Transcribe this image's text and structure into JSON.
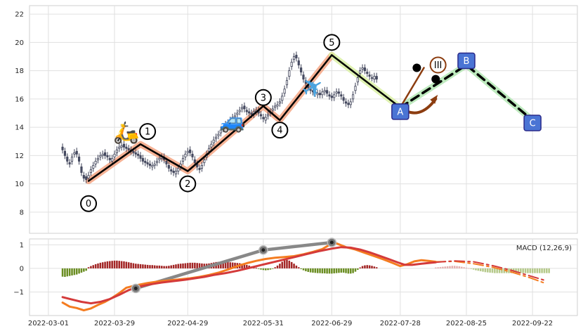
{
  "chart_data": {
    "type": "candlestick",
    "panels": [
      {
        "name": "price",
        "ylim": [
          6.5,
          22.6
        ],
        "y_ticks": [
          "8",
          "10",
          "12",
          "14",
          "16",
          "18",
          "20",
          "22"
        ],
        "y_tick_values": [
          8,
          10,
          12,
          14,
          16,
          18,
          20,
          22
        ],
        "grid": true
      },
      {
        "name": "macd",
        "title": "MACD (12,26,9)",
        "ylim": [
          -2.0,
          1.25
        ],
        "y_ticks": [
          "−1",
          "0",
          "1"
        ],
        "y_tick_values": [
          -1,
          0,
          1
        ],
        "grid": true
      }
    ],
    "x_ticks": [
      "2022-03-01",
      "2022-03-29",
      "2022-04-29",
      "2022-05-31",
      "2022-06-29",
      "2022-07-28",
      "2022-08-25",
      "2022-09-22"
    ],
    "x_tick_values": [
      0,
      28,
      59,
      91,
      120,
      149,
      177,
      205
    ],
    "xlim": [
      -8,
      224
    ],
    "candles": {
      "x_start": 6,
      "x_step": 1,
      "close": [
        12.4,
        12.0,
        11.6,
        11.4,
        11.9,
        12.2,
        12.1,
        11.6,
        10.8,
        10.4,
        10.3,
        10.6,
        11.0,
        11.3,
        11.6,
        11.8,
        12.0,
        12.1,
        12.0,
        11.9,
        11.7,
        11.8,
        12.1,
        12.4,
        12.6,
        12.7,
        12.6,
        12.5,
        12.4,
        12.3,
        12.2,
        12.1,
        12.0,
        11.8,
        11.6,
        11.5,
        11.4,
        11.3,
        11.3,
        11.4,
        11.6,
        11.8,
        11.9,
        11.7,
        11.4,
        11.1,
        10.9,
        10.8,
        10.9,
        11.1,
        11.4,
        11.8,
        12.1,
        12.3,
        12.2,
        11.9,
        11.5,
        11.2,
        11.0,
        11.3,
        11.7,
        12.1,
        12.5,
        12.8,
        13.1,
        13.3,
        13.5,
        13.8,
        14.0,
        14.2,
        14.3,
        14.5,
        14.7,
        14.8,
        15.0,
        15.2,
        15.4,
        15.3,
        15.1,
        15.0,
        14.9,
        15.1,
        15.2,
        15.0,
        14.8,
        14.6,
        14.7,
        14.9,
        15.1,
        15.3,
        15.5,
        15.6,
        15.8,
        16.2,
        16.7,
        17.3,
        18.0,
        18.6,
        19.0,
        18.9,
        18.4,
        17.9,
        17.4,
        17.1,
        16.8,
        16.6,
        16.5,
        16.4,
        16.4,
        16.3,
        16.5,
        16.6,
        16.4,
        16.2,
        16.1,
        16.3,
        16.5,
        16.4,
        16.2,
        15.9,
        15.7,
        15.6,
        15.8,
        16.3,
        16.9,
        17.5,
        18.0,
        18.2,
        18.0,
        17.8,
        17.6,
        17.5,
        17.6,
        17.4
      ],
      "open": [
        12.6,
        12.3,
        11.9,
        11.5,
        11.6,
        12.1,
        12.3,
        11.9,
        11.2,
        10.6,
        10.5,
        10.4,
        10.8,
        11.1,
        11.4,
        11.7,
        11.9,
        12.0,
        12.2,
        12.0,
        11.8,
        11.6,
        11.9,
        12.2,
        12.5,
        12.6,
        12.8,
        12.6,
        12.5,
        12.4,
        12.3,
        12.2,
        12.1,
        12.0,
        11.8,
        11.6,
        11.5,
        11.4,
        11.2,
        11.3,
        11.5,
        11.7,
        11.8,
        11.9,
        11.6,
        11.3,
        11.0,
        10.9,
        10.7,
        10.9,
        11.2,
        11.6,
        11.9,
        12.2,
        12.4,
        12.1,
        11.7,
        11.4,
        11.1,
        11.1,
        11.5,
        11.9,
        12.3,
        12.6,
        12.9,
        13.2,
        13.4,
        13.6,
        13.9,
        14.1,
        14.2,
        14.4,
        14.6,
        14.7,
        14.9,
        15.1,
        15.3,
        15.5,
        15.2,
        15.1,
        15.0,
        14.9,
        15.1,
        15.2,
        14.9,
        14.7,
        14.5,
        14.8,
        15.0,
        15.2,
        15.4,
        15.5,
        15.7,
        15.9,
        16.4,
        17.0,
        17.6,
        18.3,
        18.8,
        19.1,
        18.7,
        18.2,
        17.7,
        17.3,
        17.0,
        16.7,
        16.6,
        16.5,
        16.3,
        16.4,
        16.3,
        16.5,
        16.6,
        16.3,
        16.2,
        16.1,
        16.4,
        16.5,
        16.3,
        16.1,
        15.8,
        15.7,
        15.6,
        16.0,
        16.6,
        17.2,
        17.8,
        18.1,
        18.2,
        17.9,
        17.7,
        17.5,
        17.4,
        17.6
      ],
      "up_color": "#ffffff",
      "down_color": "#4a5068",
      "edge_color": "#3b3f55"
    },
    "wave_lines": [
      {
        "points": [
          [
            17,
            10.2
          ],
          [
            39,
            12.8
          ],
          [
            59,
            10.9
          ],
          [
            91,
            15.5
          ],
          [
            98,
            14.5
          ],
          [
            120,
            19.1
          ]
        ],
        "color": "#000000",
        "halo": "#f4a582"
      },
      {
        "points": [
          [
            120,
            19.1
          ],
          [
            149,
            15.4
          ]
        ],
        "color": "#000000",
        "halo": "#d9f0a3"
      },
      {
        "points": [
          [
            149,
            15.4
          ],
          [
            177,
            18.4
          ],
          [
            205,
            14.5
          ]
        ],
        "color": "#000000",
        "halo": "#b3e6b3",
        "dashed": true
      },
      {
        "points": [
          [
            149,
            15.4
          ],
          [
            159,
            18.2
          ]
        ],
        "color": "#8c3d10"
      },
      {
        "points": [
          [
            149,
            15.4
          ],
          [
            157,
            14.4
          ],
          [
            164,
            16.0
          ]
        ],
        "color": "#8c3d10",
        "curved": true
      }
    ],
    "wave_labels": [
      {
        "text": "0",
        "x": 17,
        "y": 8.6,
        "shape": "circle"
      },
      {
        "text": "1",
        "x": 42,
        "y": 13.7,
        "shape": "circle"
      },
      {
        "text": "2",
        "x": 59,
        "y": 10.0,
        "shape": "circle"
      },
      {
        "text": "3",
        "x": 91,
        "y": 16.1,
        "shape": "circle"
      },
      {
        "text": "4",
        "x": 98,
        "y": 13.8,
        "shape": "circle"
      },
      {
        "text": "5",
        "x": 120,
        "y": 20.0,
        "shape": "circle"
      },
      {
        "text": "A",
        "x": 149,
        "y": 15.1,
        "shape": "box",
        "fill": "#4a74d4"
      },
      {
        "text": "B",
        "x": 177,
        "y": 18.7,
        "shape": "box",
        "fill": "#4a74d4"
      },
      {
        "text": "C",
        "x": 205,
        "y": 14.3,
        "shape": "box",
        "fill": "#4a74d4"
      },
      {
        "text": "III",
        "x": 165,
        "y": 18.4,
        "shape": "circle",
        "stroke": "#8c3d10"
      }
    ],
    "markers": [
      {
        "x": 156,
        "y": 18.2,
        "color": "#000000"
      },
      {
        "x": 164,
        "y": 17.4,
        "color": "#000000"
      }
    ],
    "icons": [
      {
        "name": "scooter-icon",
        "glyph": "🛵",
        "x": 33,
        "y": 13.6
      },
      {
        "name": "car-icon",
        "glyph": "🚙",
        "x": 78,
        "y": 14.4
      },
      {
        "name": "airplane-icon",
        "glyph": "✈",
        "x": 112,
        "y": 16.8
      }
    ],
    "macd": {
      "x_start": 6,
      "histogram": [
        -0.35,
        -0.36,
        -0.34,
        -0.32,
        -0.3,
        -0.28,
        -0.26,
        -0.22,
        -0.18,
        -0.14,
        -0.1,
        0.05,
        0.1,
        0.14,
        0.18,
        0.21,
        0.24,
        0.26,
        0.28,
        0.3,
        0.31,
        0.32,
        0.33,
        0.33,
        0.32,
        0.31,
        0.3,
        0.28,
        0.26,
        0.24,
        0.22,
        0.2,
        0.19,
        0.18,
        0.17,
        0.16,
        0.15,
        0.14,
        0.14,
        0.13,
        0.12,
        0.12,
        0.11,
        0.1,
        0.1,
        0.11,
        0.13,
        0.15,
        0.17,
        0.19,
        0.2,
        0.21,
        0.22,
        0.23,
        0.24,
        0.24,
        0.24,
        0.23,
        0.22,
        0.21,
        0.2,
        0.2,
        0.21,
        0.23,
        0.25,
        0.27,
        0.28,
        0.29,
        0.29,
        0.28,
        0.27,
        0.26,
        0.25,
        0.24,
        0.23,
        0.22,
        0.2,
        0.18,
        0.15,
        0.12,
        0.08,
        0.05,
        0.03,
        -0.02,
        -0.05,
        -0.07,
        -0.08,
        -0.07,
        -0.05,
        -0.02,
        0.05,
        0.12,
        0.2,
        0.28,
        0.34,
        0.36,
        0.33,
        0.27,
        0.2,
        0.12,
        0.05,
        -0.03,
        -0.08,
        -0.12,
        -0.15,
        -0.17,
        -0.18,
        -0.19,
        -0.2,
        -0.2,
        -0.21,
        -0.21,
        -0.22,
        -0.22,
        -0.22,
        -0.21,
        -0.2,
        -0.19,
        -0.18,
        -0.18,
        -0.2,
        -0.22,
        -0.22,
        -0.2,
        -0.14,
        -0.06,
        0.04,
        0.1,
        0.13,
        0.14,
        0.13,
        0.11,
        0.08,
        0.05
      ],
      "histogram_forecast": {
        "x_start": 164,
        "values": [
          0.04,
          0.05,
          0.06,
          0.07,
          0.08,
          0.09,
          0.1,
          0.11,
          0.11,
          0.1,
          0.09,
          0.07,
          0.05,
          0.03,
          0.01,
          -0.02,
          -0.05,
          -0.08,
          -0.1,
          -0.12,
          -0.14,
          -0.16,
          -0.17,
          -0.18,
          -0.19,
          -0.2,
          -0.2,
          -0.2,
          -0.2,
          -0.2,
          -0.2,
          -0.2,
          -0.2,
          -0.2,
          -0.2,
          -0.2,
          -0.2,
          -0.2,
          -0.2,
          -0.2,
          -0.2,
          -0.2,
          -0.2,
          -0.2,
          -0.2,
          -0.2,
          -0.2,
          -0.2,
          -0.2
        ]
      },
      "macd_line": {
        "points": [
          [
            6,
            -1.45
          ],
          [
            9,
            -1.62
          ],
          [
            12,
            -1.68
          ],
          [
            15,
            -1.78
          ],
          [
            18,
            -1.7
          ],
          [
            21,
            -1.55
          ],
          [
            24,
            -1.42
          ],
          [
            27,
            -1.25
          ],
          [
            30,
            -1.05
          ],
          [
            33,
            -0.82
          ],
          [
            37,
            -0.72
          ],
          [
            42,
            -0.62
          ],
          [
            47,
            -0.55
          ],
          [
            52,
            -0.5
          ],
          [
            56,
            -0.46
          ],
          [
            60,
            -0.42
          ],
          [
            64,
            -0.36
          ],
          [
            68,
            -0.28
          ],
          [
            72,
            -0.18
          ],
          [
            76,
            -0.05
          ],
          [
            80,
            0.1
          ],
          [
            84,
            0.22
          ],
          [
            88,
            0.32
          ],
          [
            92,
            0.4
          ],
          [
            96,
            0.45
          ],
          [
            100,
            0.48
          ],
          [
            104,
            0.52
          ],
          [
            108,
            0.6
          ],
          [
            112,
            0.7
          ],
          [
            116,
            0.82
          ],
          [
            119,
            1.0
          ],
          [
            121,
            1.1
          ],
          [
            123,
            1.02
          ],
          [
            126,
            0.9
          ],
          [
            130,
            0.8
          ],
          [
            134,
            0.66
          ],
          [
            138,
            0.52
          ],
          [
            142,
            0.38
          ],
          [
            146,
            0.22
          ],
          [
            149,
            0.1
          ],
          [
            152,
            0.18
          ],
          [
            155,
            0.3
          ],
          [
            158,
            0.35
          ],
          [
            161,
            0.32
          ],
          [
            164,
            0.28
          ]
        ],
        "color": "#f47c20"
      },
      "signal_line": {
        "points": [
          [
            6,
            -1.22
          ],
          [
            10,
            -1.32
          ],
          [
            14,
            -1.42
          ],
          [
            18,
            -1.48
          ],
          [
            22,
            -1.42
          ],
          [
            26,
            -1.3
          ],
          [
            30,
            -1.12
          ],
          [
            34,
            -0.92
          ],
          [
            38,
            -0.78
          ],
          [
            43,
            -0.68
          ],
          [
            48,
            -0.6
          ],
          [
            53,
            -0.54
          ],
          [
            58,
            -0.48
          ],
          [
            62,
            -0.42
          ],
          [
            66,
            -0.36
          ],
          [
            70,
            -0.28
          ],
          [
            75,
            -0.2
          ],
          [
            80,
            -0.1
          ],
          [
            85,
            0.02
          ],
          [
            90,
            0.14
          ],
          [
            95,
            0.26
          ],
          [
            100,
            0.38
          ],
          [
            105,
            0.5
          ],
          [
            110,
            0.62
          ],
          [
            115,
            0.74
          ],
          [
            120,
            0.84
          ],
          [
            124,
            0.9
          ],
          [
            128,
            0.88
          ],
          [
            132,
            0.8
          ],
          [
            136,
            0.68
          ],
          [
            140,
            0.54
          ],
          [
            144,
            0.4
          ],
          [
            148,
            0.25
          ],
          [
            151,
            0.15
          ],
          [
            154,
            0.15
          ],
          [
            158,
            0.2
          ],
          [
            162,
            0.24
          ],
          [
            164,
            0.26
          ]
        ],
        "color": "#d43a3a"
      },
      "macd_forecast": {
        "points": [
          [
            164,
            0.28
          ],
          [
            172,
            0.3
          ],
          [
            180,
            0.2
          ],
          [
            188,
            0.05
          ],
          [
            196,
            -0.15
          ],
          [
            204,
            -0.4
          ],
          [
            210,
            -0.62
          ]
        ],
        "color": "#f47c20",
        "dashed": true
      },
      "signal_forecast": {
        "points": [
          [
            164,
            0.26
          ],
          [
            172,
            0.32
          ],
          [
            180,
            0.28
          ],
          [
            188,
            0.12
          ],
          [
            196,
            -0.08
          ],
          [
            204,
            -0.32
          ],
          [
            210,
            -0.5
          ]
        ],
        "color": "#d43a3a",
        "dashed": true
      },
      "divergence_line": {
        "points": [
          [
            37,
            -0.85
          ],
          [
            91,
            0.78
          ],
          [
            120,
            1.1
          ]
        ],
        "color": "#888888"
      }
    }
  }
}
